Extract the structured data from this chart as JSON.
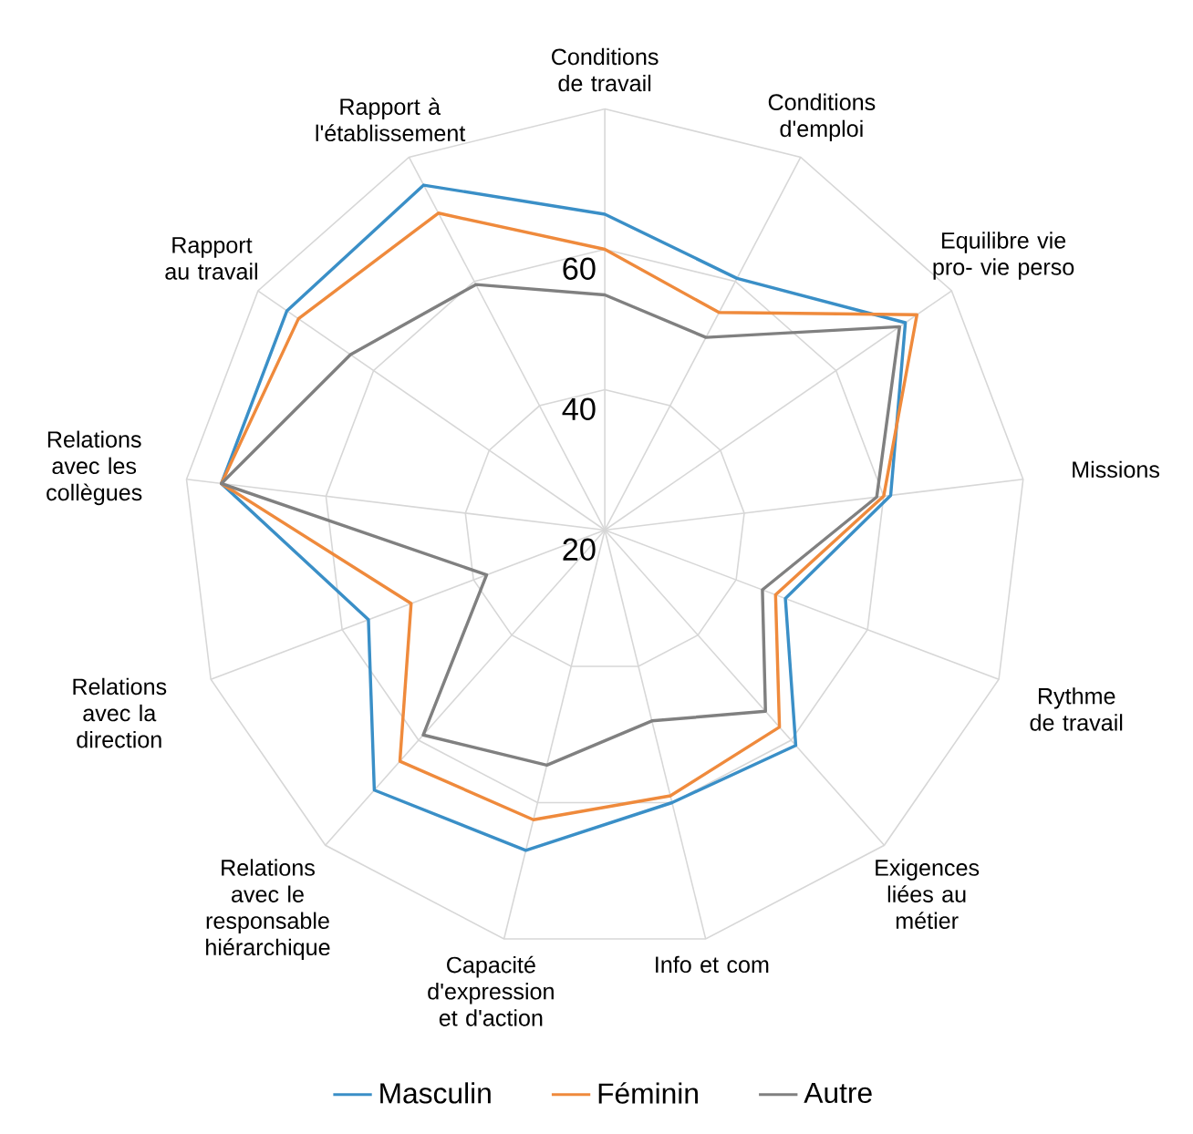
{
  "chart_data": {
    "type": "radar",
    "categories": [
      "Conditions de travail",
      "Conditions d'emploi",
      "Equilibre vie pro- vie perso",
      "Missions",
      "Rythme de travail",
      "Exigences liées au métier",
      "Info et com",
      "Capacité d'expression et d'action",
      "Relations avec le responsable hiérarchique",
      "Relations avec la direction",
      "Relations avec les collègues",
      "Rapport au travail",
      "Rapport à l'établissement"
    ],
    "series": [
      {
        "name": "Masculin",
        "color": "#3a8fc7",
        "values": [
          65,
          60.5,
          72,
          61,
          47.5,
          61,
          60,
          67,
          69.5,
          56,
          75,
          75,
          75.5
        ]
      },
      {
        "name": "Féminin",
        "color": "#ef8a3c",
        "values": [
          60,
          55,
          74,
          60,
          46,
          57.5,
          59,
          62.5,
          64,
          49.5,
          75,
          73,
          71
        ]
      },
      {
        "name": "Autre",
        "color": "#808080",
        "values": [
          53.5,
          51,
          71,
          59,
          44,
          54.5,
          48,
          54.5,
          59,
          38,
          75,
          64,
          59.5
        ]
      }
    ],
    "ylim": [
      20,
      80
    ],
    "yticks": [
      20,
      40,
      60
    ],
    "grid": true,
    "legend": "bottom"
  }
}
